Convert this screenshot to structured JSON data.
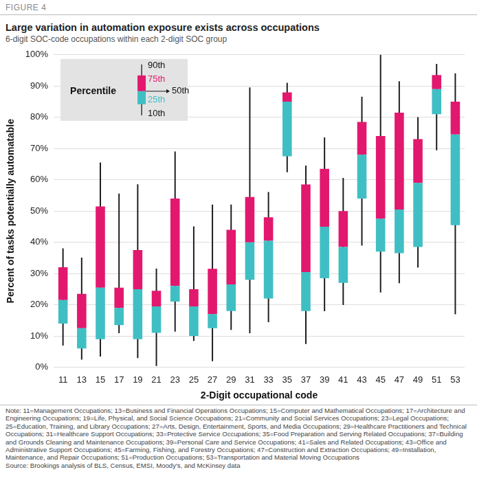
{
  "chart_data": {
    "type": "box",
    "figure_label": "FIGURE 4",
    "title": "Large variation in automation exposure exists across occupations",
    "subtitle": "6-digit SOC-code occupations within each 2-digit SOC group",
    "xlabel": "2-Digit occupational code",
    "ylabel": "Percent of tasks potentially automatable",
    "inset_title": "Percentile",
    "categories": [
      "11",
      "13",
      "15",
      "17",
      "19",
      "21",
      "23",
      "25",
      "27",
      "29",
      "31",
      "33",
      "35",
      "37",
      "39",
      "41",
      "43",
      "45",
      "47",
      "49",
      "51",
      "53"
    ],
    "series": [
      {
        "name": "10th",
        "color": "#1a1a1a",
        "values": [
          7,
          2.5,
          3.5,
          11,
          3,
          0.5,
          11.5,
          8.5,
          2,
          12,
          11,
          14.5,
          62.5,
          7.5,
          18,
          20,
          39,
          24,
          27,
          32,
          69.5,
          17
        ]
      },
      {
        "name": "25th",
        "color": "#3fbfc4",
        "values": [
          14,
          6,
          9,
          13.5,
          9,
          11,
          21,
          10,
          12.5,
          18,
          28,
          22,
          67.5,
          18,
          28.5,
          27,
          54,
          37,
          36.5,
          38.5,
          81,
          45.5
        ]
      },
      {
        "name": "50th",
        "color": "#e2186e",
        "values": [
          21.5,
          12.5,
          25.5,
          19,
          25,
          19.5,
          26,
          19.5,
          17,
          26.5,
          40,
          40.5,
          85,
          30.5,
          45,
          38.5,
          68,
          47.5,
          50.5,
          59,
          89,
          74.5
        ]
      },
      {
        "name": "75th",
        "values": [
          32,
          23.5,
          51.5,
          25.5,
          37.5,
          24.5,
          54,
          25,
          31.5,
          44,
          54.5,
          48,
          88,
          58.5,
          63.5,
          50,
          78.5,
          74,
          81.5,
          73,
          93.5,
          85
        ]
      },
      {
        "name": "90th",
        "values": [
          38,
          35,
          65.5,
          55.5,
          58.5,
          31.5,
          69,
          45,
          52,
          52,
          89.5,
          56,
          91,
          64.5,
          73.5,
          60.5,
          86.5,
          100,
          91.5,
          80,
          97,
          94
        ]
      }
    ],
    "ylim": [
      0,
      100
    ],
    "yticks": [
      {
        "value": 0,
        "label": "0%"
      },
      {
        "value": 10,
        "label": "10%"
      },
      {
        "value": 20,
        "label": "20%"
      },
      {
        "value": 30,
        "label": "30%"
      },
      {
        "value": 40,
        "label": "40%"
      },
      {
        "value": 50,
        "label": "50%"
      },
      {
        "value": 60,
        "label": "60%"
      },
      {
        "value": 70,
        "label": "70%"
      },
      {
        "value": 80,
        "label": "80%"
      },
      {
        "value": 90,
        "label": "90%"
      },
      {
        "value": 100,
        "label": "100%"
      }
    ],
    "grid": true,
    "note": "Note: 11=Management Occupations; 13=Business and Financial Operations Occupations; 15=Computer and Mathematical Occupations; 17=Architecture and Engineering Occupations; 19=Life, Physical, and Social Science Occupations; 21=Community and Social Services Occupations; 23=Legal Occupations; 25=Education, Training, and Library Occupations; 27=Arts, Design, Entertainment, Sports, and Media Occupations; 29=Healthcare Practitioners and Technical Occupations; 31=Healthcare Support Occupations; 33=Protective Service Occupations; 35=Food Preparation and Serving Related Occupations; 37=Building and Grounds Cleaning and Maintenance Occupations; 39=Personal Care and Service Occupations; 41=Sales and Related Occupations; 43=Office and Administrative Support Occupations; 45=Farming, Fishing, and Forestry Occupations; 47=Construction and Extraction Occupations; 49=Installation, Maintenance, and Repair Occupations; 51=Production Occupations; 53=Transportation and Material Moving Occupations",
    "source": "Source: Brookings analysis of BLS, Census, EMSI, Moody's, and McKinsey data"
  }
}
